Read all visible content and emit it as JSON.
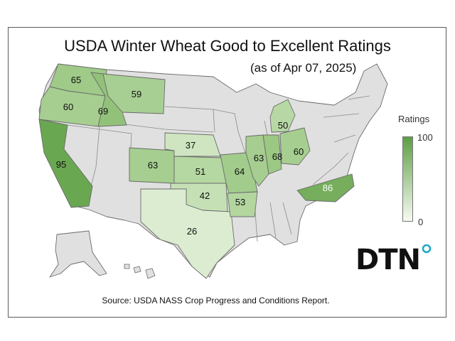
{
  "title": "USDA Winter Wheat Good to Excellent Ratings",
  "subtitle": "(as of Apr 07, 2025)",
  "legend": {
    "title": "Ratings",
    "max": "100",
    "min": "0"
  },
  "logo": {
    "text": "DTN"
  },
  "source": "Source: USDA NASS Crop Progress and Conditions Report.",
  "colors": {
    "no_data": "#e0e0e0",
    "low": "#f7fbf2",
    "high": "#5e9e45",
    "border": "#6a6a6a"
  },
  "states": {
    "WA": "65",
    "OR": "60",
    "ID": "69",
    "MT": "59",
    "CA": "95",
    "CO": "63",
    "NE": "37",
    "KS": "51",
    "OK": "42",
    "TX": "26",
    "MO": "64",
    "AR": "53",
    "IL": "63",
    "IN": "68",
    "OH": "60",
    "MI": "50",
    "NC": "86"
  }
}
